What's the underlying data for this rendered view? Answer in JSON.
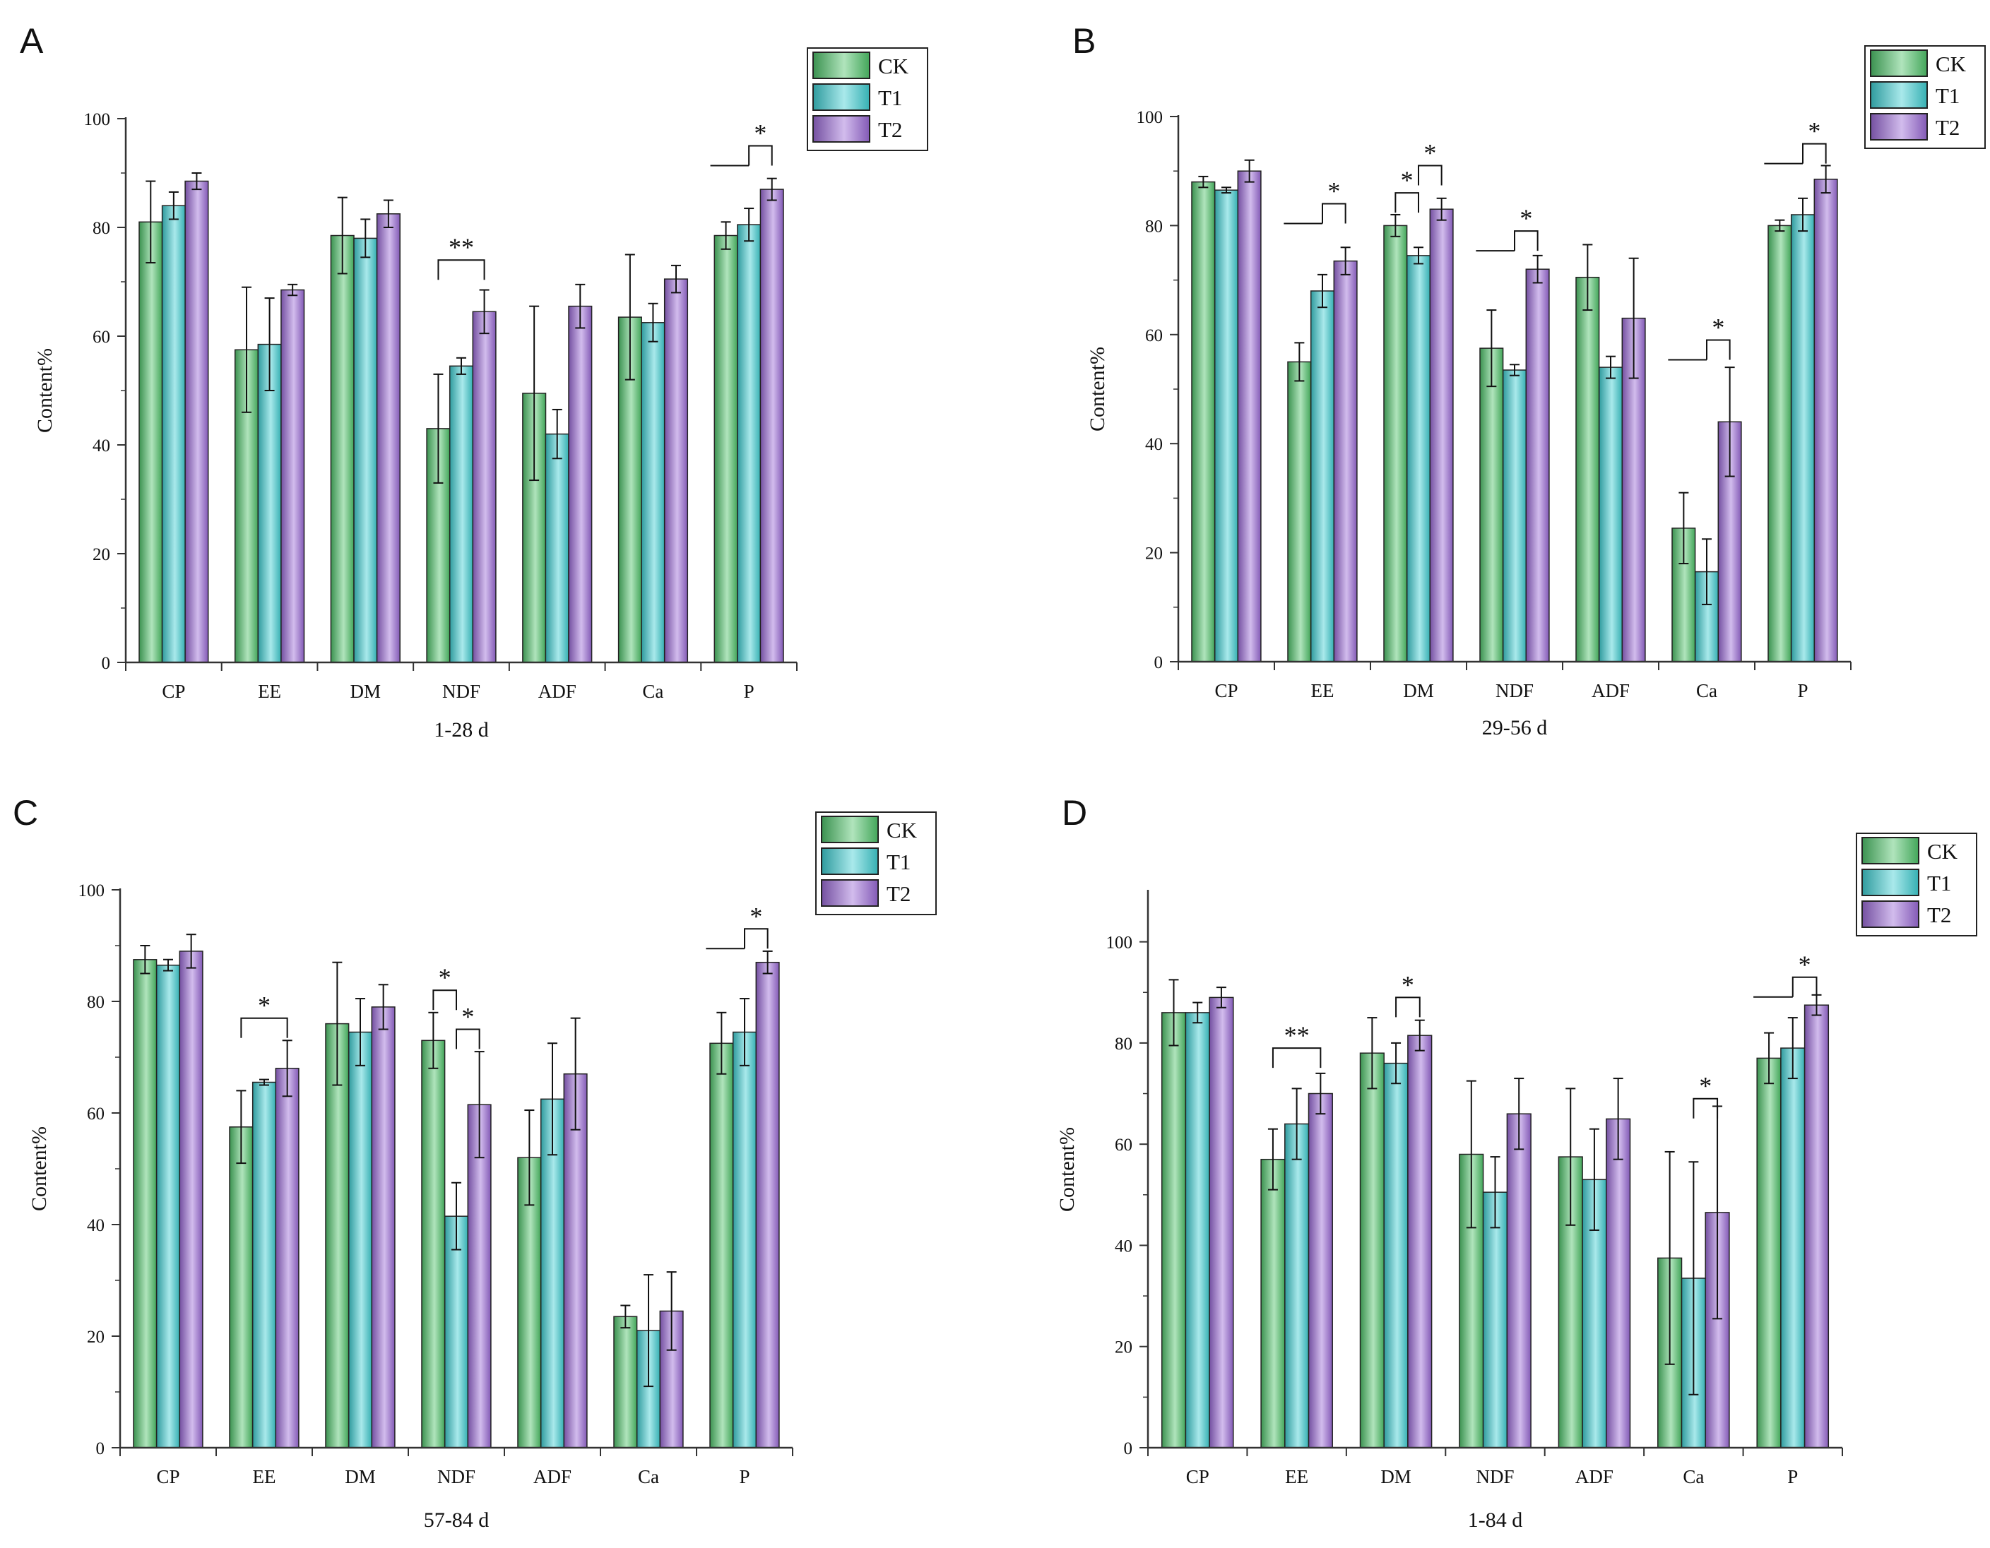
{
  "colors": {
    "CK": "#4fc36a",
    "T1": "#3fcfd3",
    "T2": "#9a6ad6",
    "axis": "#333333",
    "text": "#111111"
  },
  "legend": [
    "CK",
    "T1",
    "T2"
  ],
  "chart_data": [
    {
      "panel": "A",
      "type": "bar",
      "title": "",
      "xlabel": "1-28 d",
      "ylabel": "Content%",
      "ylim": [
        0,
        100
      ],
      "yticks": [
        0,
        20,
        40,
        60,
        80,
        100
      ],
      "categories": [
        "CP",
        "EE",
        "DM",
        "NDF",
        "ADF",
        "Ca",
        "P"
      ],
      "series": [
        {
          "name": "CK",
          "values": [
            81.0,
            57.5,
            78.5,
            43.0,
            49.5,
            63.5,
            78.5
          ],
          "errors": [
            7.5,
            11.5,
            7.0,
            10.0,
            16.0,
            11.5,
            2.5
          ]
        },
        {
          "name": "T1",
          "values": [
            84.0,
            58.5,
            78.0,
            54.5,
            42.0,
            62.5,
            80.5
          ],
          "errors": [
            2.5,
            8.5,
            3.5,
            1.5,
            4.5,
            3.5,
            3.0
          ]
        },
        {
          "name": "T2",
          "values": [
            88.5,
            68.5,
            82.5,
            64.5,
            65.5,
            70.5,
            87.0
          ],
          "errors": [
            1.5,
            1.0,
            2.5,
            4.0,
            4.0,
            2.5,
            2.0
          ]
        }
      ],
      "annotations": [
        {
          "label": "**",
          "category": "NDF",
          "from": "CK",
          "to": "T2",
          "y": 74,
          "bracket": "full"
        },
        {
          "label": "*",
          "category": "P",
          "from": "T1",
          "to": "T2",
          "y": 95,
          "bracket": "full",
          "from_line": "CK"
        }
      ]
    },
    {
      "panel": "B",
      "type": "bar",
      "title": "",
      "xlabel": "29-56 d",
      "ylabel": "Content%",
      "ylim": [
        0,
        100
      ],
      "yticks": [
        0,
        20,
        40,
        60,
        80,
        100
      ],
      "categories": [
        "CP",
        "EE",
        "DM",
        "NDF",
        "ADF",
        "Ca",
        "P"
      ],
      "series": [
        {
          "name": "CK",
          "values": [
            88.0,
            55.0,
            80.0,
            57.5,
            70.5,
            24.5,
            80.0
          ],
          "errors": [
            1.0,
            3.5,
            2.0,
            7.0,
            6.0,
            6.5,
            1.0
          ]
        },
        {
          "name": "T1",
          "values": [
            86.5,
            68.0,
            74.5,
            53.5,
            54.0,
            16.5,
            82.0
          ],
          "errors": [
            0.5,
            3.0,
            1.5,
            1.0,
            2.0,
            6.0,
            3.0
          ]
        },
        {
          "name": "T2",
          "values": [
            90.0,
            73.5,
            83.0,
            72.0,
            63.0,
            44.0,
            88.5
          ],
          "errors": [
            2.0,
            2.5,
            2.0,
            2.5,
            11.0,
            10.0,
            2.5
          ]
        }
      ],
      "annotations": [
        {
          "label": "*",
          "category": "EE",
          "from": "T1",
          "to": "T2",
          "y": 84,
          "bracket": "full",
          "from_line": "CK"
        },
        {
          "label": "*",
          "category": "DM",
          "from": "CK",
          "to": "T1",
          "y": 86,
          "bracket": "full"
        },
        {
          "label": "*",
          "category": "DM",
          "from": "T1",
          "to": "T2",
          "y": 91,
          "bracket": "full"
        },
        {
          "label": "*",
          "category": "NDF",
          "from": "T1",
          "to": "T2",
          "y": 79,
          "bracket": "full",
          "from_line": "CK"
        },
        {
          "label": "*",
          "category": "Ca",
          "from": "T1",
          "to": "T2",
          "y": 59,
          "bracket": "full",
          "from_line": "CK"
        },
        {
          "label": "*",
          "category": "P",
          "from": "T1",
          "to": "T2",
          "y": 95,
          "bracket": "full",
          "from_line": "CK"
        }
      ]
    },
    {
      "panel": "C",
      "type": "bar",
      "title": "",
      "xlabel": "57-84 d",
      "ylabel": "Content%",
      "ylim": [
        0,
        100
      ],
      "yticks": [
        0,
        20,
        40,
        60,
        80,
        100
      ],
      "categories": [
        "CP",
        "EE",
        "DM",
        "NDF",
        "ADF",
        "Ca",
        "P"
      ],
      "series": [
        {
          "name": "CK",
          "values": [
            87.5,
            57.5,
            76.0,
            73.0,
            52.0,
            23.5,
            72.5
          ],
          "errors": [
            2.5,
            6.5,
            11.0,
            5.0,
            8.5,
            2.0,
            5.5
          ]
        },
        {
          "name": "T1",
          "values": [
            86.5,
            65.5,
            74.5,
            41.5,
            62.5,
            21.0,
            74.5
          ],
          "errors": [
            1.0,
            0.5,
            6.0,
            6.0,
            10.0,
            10.0,
            6.0
          ]
        },
        {
          "name": "T2",
          "values": [
            89.0,
            68.0,
            79.0,
            61.5,
            67.0,
            24.5,
            87.0
          ],
          "errors": [
            3.0,
            5.0,
            4.0,
            9.5,
            10.0,
            7.0,
            2.0
          ]
        }
      ],
      "annotations": [
        {
          "label": "*",
          "category": "EE",
          "from": "CK",
          "to": "T2",
          "y": 77,
          "bracket": "full"
        },
        {
          "label": "*",
          "category": "NDF",
          "from": "CK",
          "to": "T1",
          "y": 82,
          "bracket": "full"
        },
        {
          "label": "*",
          "category": "NDF",
          "from": "T1",
          "to": "T2",
          "y": 75,
          "bracket": "full"
        },
        {
          "label": "*",
          "category": "P",
          "from": "T1",
          "to": "T2",
          "y": 93,
          "bracket": "full",
          "from_line": "CK"
        }
      ]
    },
    {
      "panel": "D",
      "type": "bar",
      "title": "",
      "xlabel": "1-84 d",
      "ylabel": "Content%",
      "ylim": [
        0,
        110
      ],
      "yticks": [
        0,
        20,
        40,
        60,
        80,
        100
      ],
      "categories": [
        "CP",
        "EE",
        "DM",
        "NDF",
        "ADF",
        "Ca",
        "P"
      ],
      "series": [
        {
          "name": "CK",
          "values": [
            86.0,
            57.0,
            78.0,
            58.0,
            57.5,
            37.5,
            77.0
          ],
          "errors": [
            6.5,
            6.0,
            7.0,
            14.5,
            13.5,
            21.0,
            5.0
          ]
        },
        {
          "name": "T1",
          "values": [
            86.0,
            64.0,
            76.0,
            50.5,
            53.0,
            33.5,
            79.0
          ],
          "errors": [
            2.0,
            7.0,
            4.0,
            7.0,
            10.0,
            23.0,
            6.0
          ]
        },
        {
          "name": "T2",
          "values": [
            89.0,
            70.0,
            81.5,
            66.0,
            65.0,
            46.5,
            87.5
          ],
          "errors": [
            2.0,
            4.0,
            3.0,
            7.0,
            8.0,
            21.0,
            2.0
          ]
        }
      ],
      "annotations": [
        {
          "label": "**",
          "category": "EE",
          "from": "CK",
          "to": "T2",
          "y": 79,
          "bracket": "full"
        },
        {
          "label": "*",
          "category": "DM",
          "from": "T1",
          "to": "T2",
          "y": 89,
          "bracket": "full"
        },
        {
          "label": "*",
          "category": "Ca",
          "from": "T1",
          "to": "T2",
          "y": 69,
          "bracket": "full"
        },
        {
          "label": "*",
          "category": "P",
          "from": "T1",
          "to": "T2",
          "y": 93,
          "bracket": "full",
          "from_line": "CK"
        }
      ]
    }
  ]
}
